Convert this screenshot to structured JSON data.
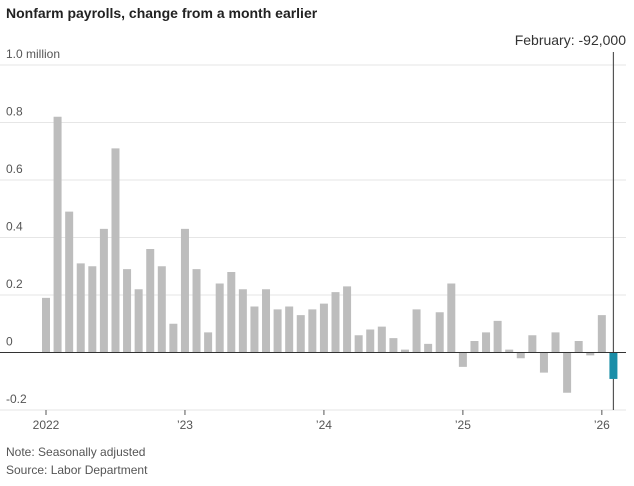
{
  "chart_data": {
    "type": "bar",
    "title": "Nonfarm payrolls, change from a month earlier",
    "annotation": "February: -92,000",
    "note": "Note: Seasonally adjusted",
    "source": "Source: Labor Department",
    "categories": [
      "2022",
      null,
      null,
      null,
      null,
      null,
      null,
      null,
      null,
      null,
      null,
      null,
      "’23",
      null,
      null,
      null,
      null,
      null,
      null,
      null,
      null,
      null,
      null,
      null,
      "’24",
      null,
      null,
      null,
      null,
      null,
      null,
      null,
      null,
      null,
      null,
      null,
      "’25",
      null,
      null,
      null,
      null,
      null,
      null,
      null,
      null,
      null,
      null,
      null,
      "’26",
      null
    ],
    "values": [
      0.19,
      0.82,
      0.49,
      0.31,
      0.3,
      0.43,
      0.71,
      0.29,
      0.22,
      0.36,
      0.3,
      0.1,
      0.43,
      0.29,
      0.07,
      0.24,
      0.28,
      0.22,
      0.16,
      0.22,
      0.15,
      0.16,
      0.13,
      0.15,
      0.17,
      0.21,
      0.23,
      0.06,
      0.08,
      0.09,
      0.05,
      0.01,
      0.15,
      0.03,
      0.14,
      0.24,
      -0.05,
      0.04,
      0.07,
      0.11,
      0.01,
      -0.02,
      0.06,
      -0.07,
      0.07,
      -0.14,
      0.04,
      -0.01,
      0.13,
      -0.092
    ],
    "color": "#bdbdbd",
    "highlight_color": "#1b8ea8",
    "ylim": [
      -0.2,
      1.0
    ],
    "yticks": [
      -0.2,
      0,
      0.2,
      0.4,
      0.6,
      0.8,
      {
        "value": 1.0,
        "label": "1.0 million"
      }
    ],
    "grid": true
  }
}
